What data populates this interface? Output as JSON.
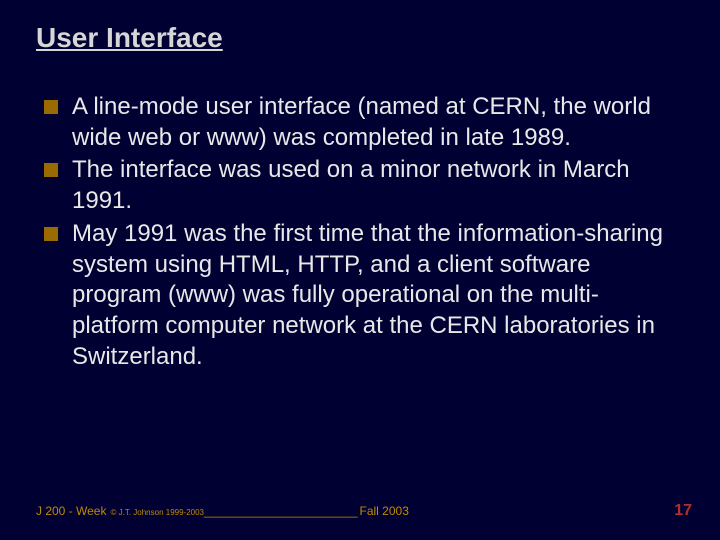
{
  "colors": {
    "background": "#000033",
    "title": "#d6d6d6",
    "body_text": "#e8e8e8",
    "bullet_fill": "#9a6b00",
    "footer_text": "#c08a00",
    "page_number": "#b03030"
  },
  "typography": {
    "title_fontsize_pt": 21,
    "body_fontsize_pt": 18,
    "footer_fontsize_pt": 9,
    "page_num_fontsize_pt": 12,
    "font_family": "Arial"
  },
  "title": "User Interface",
  "bullets": [
    "A line-mode user interface (named at CERN, the world wide web or www) was completed in late 1989.",
    "The interface was used on a minor network in March 1991.",
    "May 1991 was the first time that the information-sharing system using HTML, HTTP, and a client software program (www) was fully operational on the multi-platform computer network at the CERN laboratories in Switzerland."
  ],
  "footer": {
    "left": "J 200 - Week",
    "copyright": "© J.T. Johnson 1999-2003",
    "blank_line": "_______________________",
    "right": "Fall 2003"
  },
  "page_number": "17"
}
